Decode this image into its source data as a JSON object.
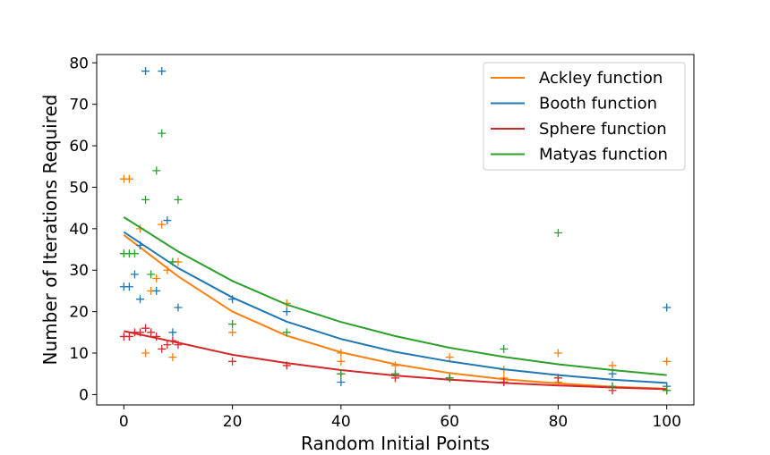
{
  "chart_data": {
    "type": "scatter",
    "xlabel": "Random Initial Points",
    "ylabel": "Number of Iterations Required",
    "xlim": [
      -5,
      105
    ],
    "ylim": [
      -2.5,
      82
    ],
    "xticks": [
      0,
      20,
      40,
      60,
      80,
      100
    ],
    "yticks": [
      0,
      10,
      20,
      30,
      40,
      50,
      60,
      70,
      80
    ],
    "grid": false,
    "legend_position": "top-right",
    "series": [
      {
        "name": "Ackley function",
        "color": "#ff7f0e",
        "points": [
          [
            0,
            52
          ],
          [
            1,
            52
          ],
          [
            3,
            40
          ],
          [
            4,
            10
          ],
          [
            5,
            25
          ],
          [
            6,
            28
          ],
          [
            7,
            41
          ],
          [
            8,
            30
          ],
          [
            9,
            9
          ],
          [
            10,
            32
          ],
          [
            20,
            15
          ],
          [
            30,
            22
          ],
          [
            40,
            8
          ],
          [
            40,
            10
          ],
          [
            50,
            7
          ],
          [
            50,
            4
          ],
          [
            60,
            9
          ],
          [
            70,
            4
          ],
          [
            70,
            6
          ],
          [
            80,
            10
          ],
          [
            80,
            3
          ],
          [
            90,
            7
          ],
          [
            90,
            2
          ],
          [
            100,
            8
          ],
          [
            100,
            2
          ]
        ],
        "curve": [
          [
            0,
            38.5
          ],
          [
            10,
            28.5
          ],
          [
            20,
            20
          ],
          [
            30,
            14.2
          ],
          [
            40,
            10.2
          ],
          [
            50,
            7.3
          ],
          [
            60,
            5.2
          ],
          [
            70,
            3.7
          ],
          [
            80,
            2.7
          ],
          [
            90,
            1.9
          ],
          [
            100,
            1.4
          ]
        ]
      },
      {
        "name": "Booth function",
        "color": "#1f77b4",
        "points": [
          [
            0,
            26
          ],
          [
            1,
            26
          ],
          [
            2,
            29
          ],
          [
            3,
            36
          ],
          [
            3,
            23
          ],
          [
            4,
            78
          ],
          [
            6,
            25
          ],
          [
            7,
            78
          ],
          [
            8,
            42
          ],
          [
            9,
            15
          ],
          [
            10,
            21
          ],
          [
            20,
            23
          ],
          [
            30,
            20
          ],
          [
            40,
            3
          ],
          [
            50,
            5
          ],
          [
            60,
            4
          ],
          [
            70,
            3
          ],
          [
            80,
            4
          ],
          [
            90,
            5
          ],
          [
            100,
            21
          ],
          [
            100,
            2
          ]
        ],
        "curve": [
          [
            0,
            39.2
          ],
          [
            10,
            30.5
          ],
          [
            20,
            23.4
          ],
          [
            30,
            17.6
          ],
          [
            40,
            13.4
          ],
          [
            50,
            10.3
          ],
          [
            60,
            8
          ],
          [
            70,
            6.1
          ],
          [
            80,
            4.7
          ],
          [
            90,
            3.6
          ],
          [
            100,
            2.8
          ]
        ]
      },
      {
        "name": "Sphere function",
        "color": "#d62728",
        "points": [
          [
            0,
            14
          ],
          [
            1,
            14
          ],
          [
            2,
            15
          ],
          [
            3,
            15
          ],
          [
            4,
            16
          ],
          [
            5,
            15
          ],
          [
            6,
            14
          ],
          [
            7,
            11
          ],
          [
            8,
            12
          ],
          [
            9,
            13
          ],
          [
            10,
            12
          ],
          [
            20,
            8
          ],
          [
            30,
            7
          ],
          [
            40,
            5
          ],
          [
            50,
            4
          ],
          [
            60,
            4
          ],
          [
            70,
            3
          ],
          [
            80,
            4
          ],
          [
            90,
            1
          ],
          [
            100,
            1
          ]
        ],
        "curve": [
          [
            0,
            15.3
          ],
          [
            10,
            12.5
          ],
          [
            20,
            9.6
          ],
          [
            30,
            7.6
          ],
          [
            40,
            5.9
          ],
          [
            50,
            4.6
          ],
          [
            60,
            3.6
          ],
          [
            70,
            2.8
          ],
          [
            80,
            2.2
          ],
          [
            90,
            1.7
          ],
          [
            100,
            1.3
          ]
        ]
      },
      {
        "name": "Matyas function",
        "color": "#2ca02c",
        "points": [
          [
            0,
            34
          ],
          [
            1,
            34
          ],
          [
            2,
            34
          ],
          [
            4,
            47
          ],
          [
            5,
            29
          ],
          [
            6,
            54
          ],
          [
            7,
            63
          ],
          [
            9,
            32
          ],
          [
            10,
            47
          ],
          [
            20,
            17
          ],
          [
            30,
            15
          ],
          [
            40,
            5
          ],
          [
            50,
            5
          ],
          [
            60,
            4
          ],
          [
            70,
            11
          ],
          [
            80,
            39
          ],
          [
            90,
            2
          ],
          [
            100,
            1
          ]
        ],
        "curve": [
          [
            0,
            42.8
          ],
          [
            10,
            34.5
          ],
          [
            20,
            27.4
          ],
          [
            30,
            21.7
          ],
          [
            40,
            17.5
          ],
          [
            50,
            14.1
          ],
          [
            60,
            11.3
          ],
          [
            70,
            9.1
          ],
          [
            80,
            7.3
          ],
          [
            90,
            5.9
          ],
          [
            100,
            4.7
          ]
        ]
      }
    ]
  }
}
